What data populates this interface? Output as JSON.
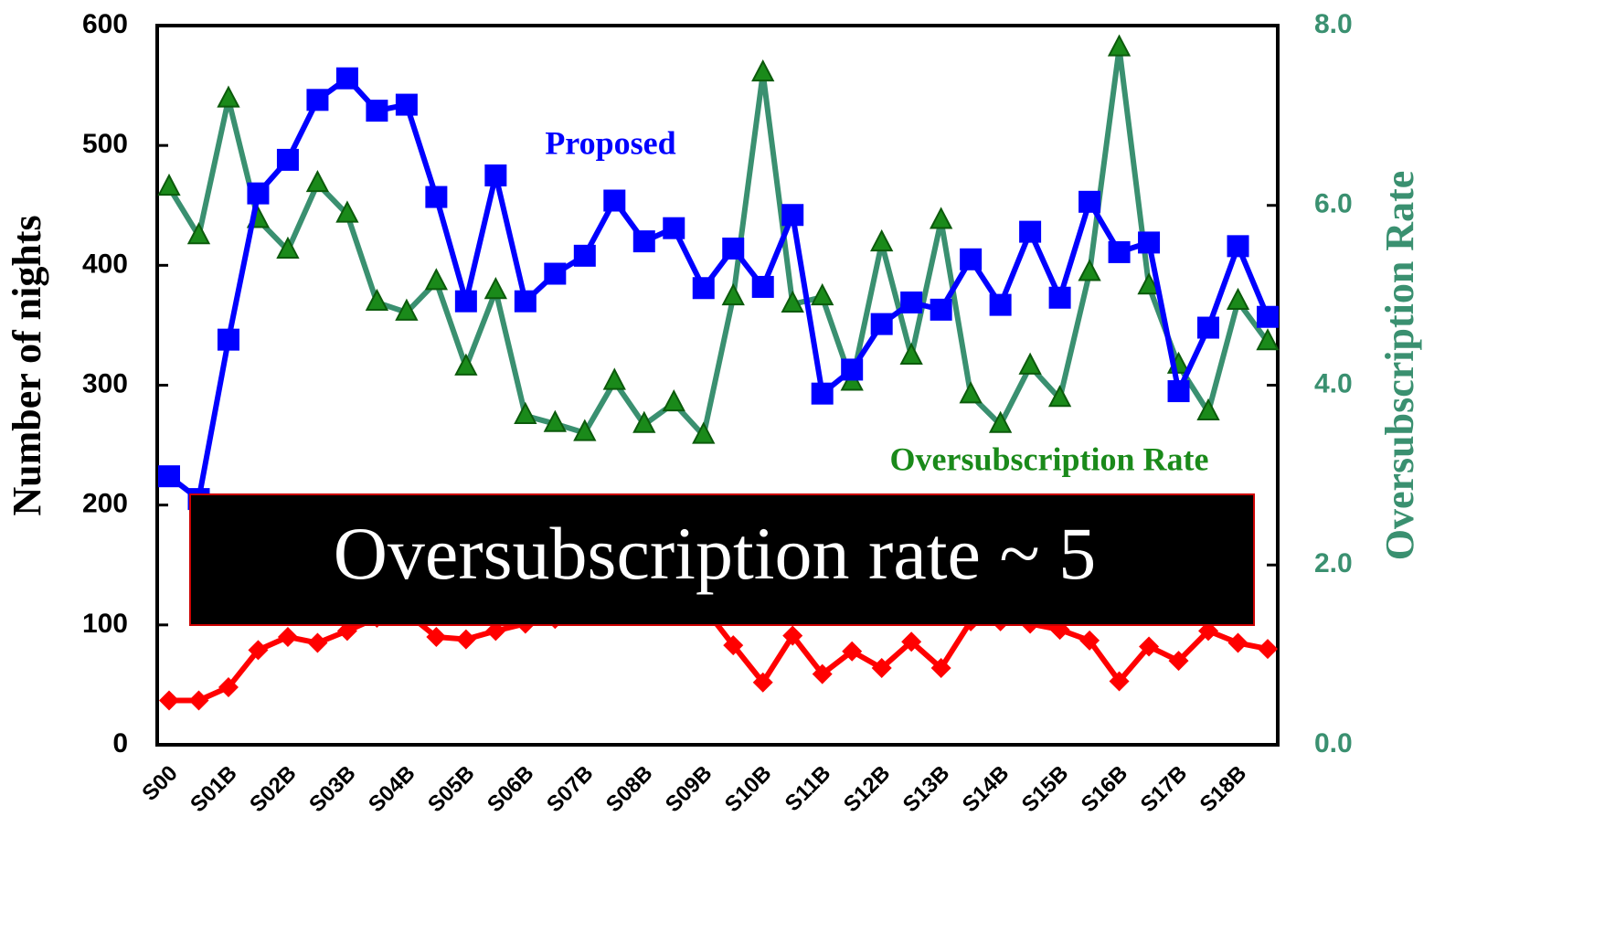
{
  "chart_data": {
    "type": "line",
    "categories": [
      "S00",
      null,
      "S01B",
      null,
      "S02B",
      null,
      "S03B",
      null,
      "S04B",
      null,
      "S05B",
      null,
      "S06B",
      null,
      "S07B",
      null,
      "S08B",
      null,
      "S09B",
      null,
      "S10B",
      null,
      "S11B",
      null,
      "S12B",
      null,
      "S13B",
      null,
      "S14B",
      null,
      "S15B",
      null,
      "S16B",
      null,
      "S17B",
      null,
      "S18B",
      null
    ],
    "series": [
      {
        "name": "Proposed",
        "color": "#0000ff",
        "marker": "square",
        "values": [
          224,
          205,
          338,
          460,
          488,
          538,
          556,
          529,
          534,
          457,
          370,
          475,
          370,
          393,
          408,
          454,
          420,
          431,
          381,
          414,
          382,
          442,
          293,
          313,
          351,
          369,
          363,
          405,
          367,
          428,
          373,
          453,
          411,
          419,
          295,
          348,
          416,
          357
        ]
      },
      {
        "name": "Oversubscription Rate",
        "color": "#3a9070",
        "marker": "triangle",
        "axis": "y2",
        "values": [
          6.2,
          5.66,
          7.18,
          5.84,
          5.5,
          6.24,
          5.9,
          4.92,
          4.81,
          5.15,
          4.2,
          5.05,
          3.66,
          3.57,
          3.47,
          4.04,
          3.56,
          3.8,
          3.44,
          4.98,
          7.47,
          4.9,
          4.98,
          4.03,
          5.58,
          4.32,
          5.83,
          3.89,
          3.56,
          4.21,
          3.85,
          5.25,
          7.75,
          5.1,
          4.22,
          3.7,
          4.93,
          4.48
        ]
      },
      {
        "color": "#ff0000",
        "marker": "diamond",
        "values": [
          37,
          37,
          48,
          79,
          90,
          85,
          95,
          106,
          110,
          90,
          88,
          95,
          101,
          105,
          110,
          112,
          108,
          110,
          115,
          83,
          52,
          91,
          59,
          78,
          64,
          86,
          64,
          103,
          103,
          101,
          96,
          87,
          53,
          82,
          70,
          95,
          85,
          80
        ]
      }
    ],
    "ylabel": "Number of nights",
    "y2label": "Oversubscription Rate",
    "ylim": [
      0,
      600
    ],
    "yticks": [
      0,
      100,
      200,
      300,
      400,
      500,
      600
    ],
    "y2lim": [
      0,
      8
    ],
    "y2ticks": [
      {
        "value": 0,
        "label": "0.0"
      },
      {
        "value": 2,
        "label": "2.0"
      },
      {
        "value": 4,
        "label": "4.0"
      },
      {
        "value": 6,
        "label": "6.0"
      },
      {
        "value": 8,
        "label": "8.0"
      }
    ],
    "annotation": "Oversubscription rate ~ 5"
  }
}
